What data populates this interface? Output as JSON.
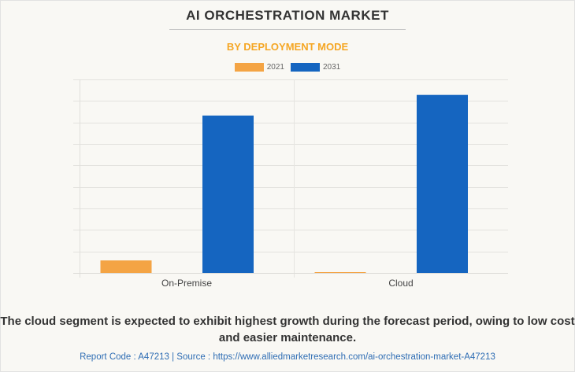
{
  "header": {
    "title": "AI ORCHESTRATION MARKET",
    "subtitle": "BY DEPLOYMENT MODE"
  },
  "colors": {
    "series_2021": "#f4a444",
    "series_2031": "#1565c0",
    "accent": "#f5a623"
  },
  "chart_data": {
    "type": "bar",
    "title": "AI ORCHESTRATION MARKET",
    "subtitle": "BY DEPLOYMENT MODE",
    "categories": [
      "On-Premise",
      "Cloud"
    ],
    "series": [
      {
        "name": "2021",
        "values": [
          0.58,
          0.03
        ]
      },
      {
        "name": "2031",
        "values": [
          7.32,
          8.28
        ]
      }
    ],
    "xlabel": "",
    "ylabel": "",
    "ylim": [
      0,
      9
    ],
    "grid": true,
    "y_tick_labels_visible": false,
    "legend": "top-center"
  },
  "footer": {
    "summary": "The cloud segment is expected to exhibit highest growth during the forecast period, owing to low cost and easier maintenance.",
    "source": "Report Code : A47213  |  Source : https://www.alliedmarketresearch.com/ai-orchestration-market-A47213"
  }
}
